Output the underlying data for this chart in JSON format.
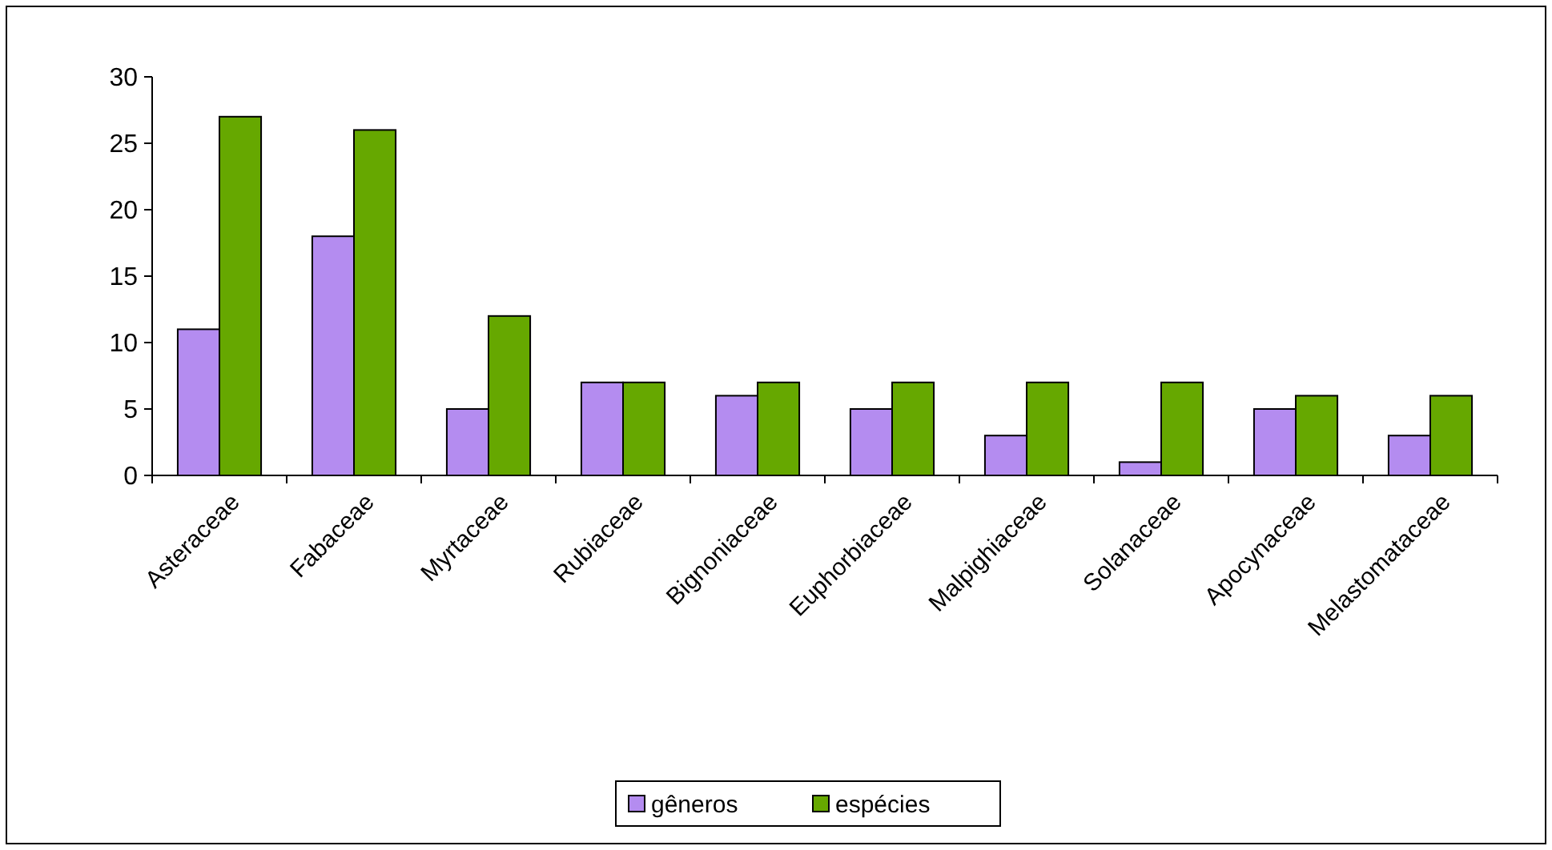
{
  "chart_data": {
    "type": "bar",
    "categories": [
      "Asteraceae",
      "Fabaceae",
      "Myrtaceae",
      "Rubiaceae",
      "Bignoniaceae",
      "Euphorbiaceae",
      "Malpighiaceae",
      "Solanaceae",
      "Apocynaceae",
      "Melastomataceae"
    ],
    "series": [
      {
        "name": "gêneros",
        "color": "#b48cf0",
        "values": [
          11,
          18,
          5,
          7,
          6,
          5,
          3,
          1,
          5,
          3
        ]
      },
      {
        "name": "espécies",
        "color": "#66a800",
        "values": [
          27,
          26,
          12,
          7,
          7,
          7,
          7,
          7,
          6,
          6
        ]
      }
    ],
    "ylim": [
      0,
      30
    ],
    "yticks": [
      0,
      5,
      10,
      15,
      20,
      25,
      30
    ],
    "grid": false,
    "legend": "bottom"
  }
}
